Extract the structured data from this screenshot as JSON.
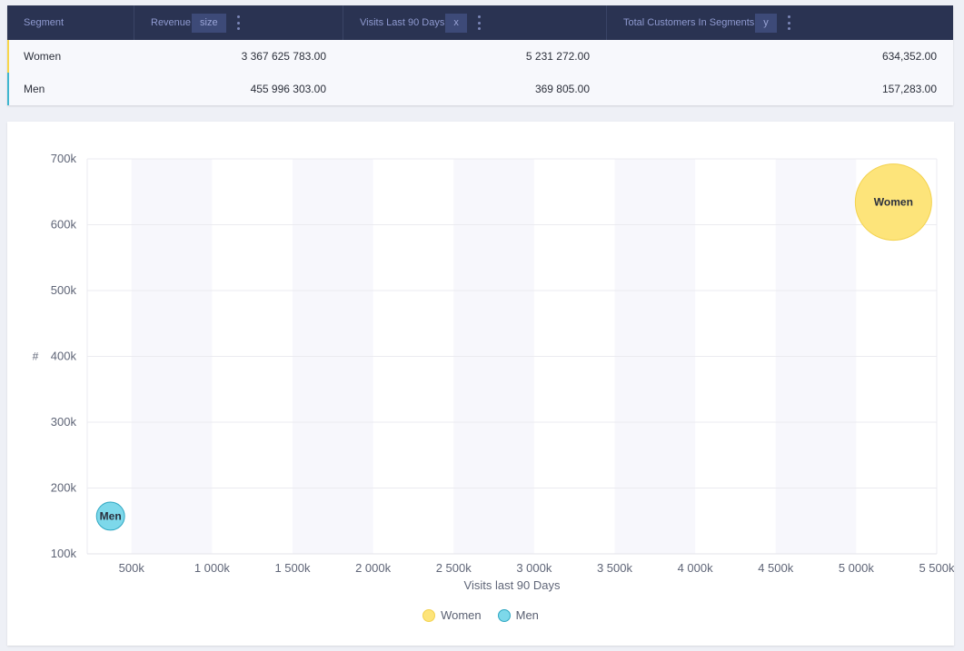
{
  "table": {
    "headers": [
      {
        "label": "Segment",
        "role": "",
        "has_menu": false
      },
      {
        "label": "Revenue",
        "role": "size",
        "has_menu": true
      },
      {
        "label": "Visits Last 90 Days",
        "role": "x",
        "has_menu": true
      },
      {
        "label": "Total Customers In Segments",
        "role": "y",
        "has_menu": true
      }
    ],
    "rows": [
      {
        "segment": "Women",
        "revenue": "3 367 625 783.00",
        "visits": "5 231 272.00",
        "customers": "634,352.00",
        "color": "#f7d64a"
      },
      {
        "segment": "Men",
        "revenue": "455 996 303.00",
        "visits": "369 805.00",
        "customers": "157,283.00",
        "color": "#3fb6cf"
      }
    ]
  },
  "chart_data": {
    "type": "scatter",
    "xlabel": "Visits last 90 Days",
    "ylabel": "#",
    "xlim": [
      225000,
      5500000
    ],
    "ylim": [
      100000,
      700000
    ],
    "x_ticks": [
      500000,
      1000000,
      1500000,
      2000000,
      2500000,
      3000000,
      3500000,
      4000000,
      4500000,
      5000000,
      5500000
    ],
    "x_tick_labels": [
      "500k",
      "1 000k",
      "1 500k",
      "2 000k",
      "2 500k",
      "3 000k",
      "3 500k",
      "4 000k",
      "4 500k",
      "5 000k",
      "5 500k"
    ],
    "y_ticks": [
      100000,
      200000,
      300000,
      400000,
      500000,
      600000,
      700000
    ],
    "y_tick_labels": [
      "100k",
      "200k",
      "300k",
      "400k",
      "500k",
      "600k",
      "700k"
    ],
    "series": [
      {
        "name": "Women",
        "x": 5231272,
        "y": 634352,
        "size": 3367625783,
        "color": "#fde47a",
        "stroke": "#f3d24e"
      },
      {
        "name": "Men",
        "x": 369805,
        "y": 157283,
        "size": 455996303,
        "color": "#7dd8ea",
        "stroke": "#2fa7c2"
      }
    ],
    "legend": "bottom-center"
  }
}
